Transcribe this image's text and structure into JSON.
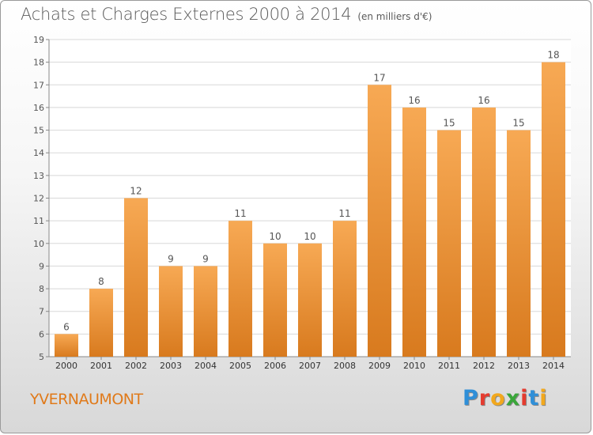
{
  "title": "Achats et Charges Externes 2000 à 2014",
  "subtitle": "(en milliers d'€)",
  "commune": "YVERNAUMONT",
  "logo": {
    "text": "Proxiti",
    "colors": [
      "#2f8fd8",
      "#e53b2f",
      "#f2a81d",
      "#3aa63a",
      "#e53b2f",
      "#2f8fd8",
      "#f2a81d"
    ]
  },
  "colors": {
    "bar_top": "#f7a954",
    "bar_bottom": "#d87a1e",
    "commune_text": "#e07a1a"
  },
  "chart_data": {
    "type": "bar",
    "categories": [
      "2000",
      "2001",
      "2002",
      "2003",
      "2004",
      "2005",
      "2006",
      "2007",
      "2008",
      "2009",
      "2010",
      "2011",
      "2012",
      "2013",
      "2014"
    ],
    "values": [
      6,
      8,
      12,
      9,
      9,
      11,
      10,
      10,
      11,
      17,
      16,
      15,
      16,
      15,
      18
    ],
    "ylim": [
      5,
      19
    ],
    "yticks": [
      5,
      6,
      7,
      8,
      9,
      10,
      11,
      12,
      13,
      14,
      15,
      16,
      17,
      18,
      19
    ],
    "grid": true,
    "data_labels": true
  }
}
